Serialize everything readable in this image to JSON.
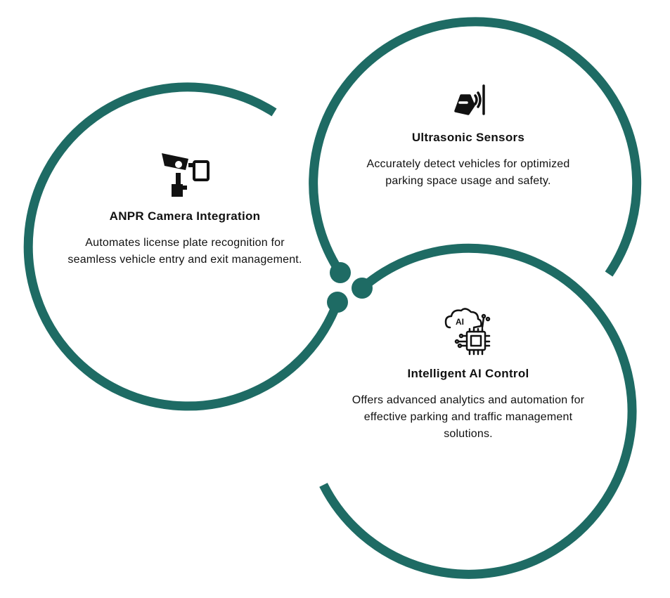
{
  "theme": {
    "ring_color": "#1e6b64",
    "icon_color": "#111111",
    "text_color": "#111111"
  },
  "nodes": [
    {
      "title": "ANPR Camera Integration",
      "description": "Automates license plate recognition for seamless vehicle entry and exit management.",
      "icon": "security-camera-icon"
    },
    {
      "title": "Ultrasonic Sensors",
      "description": "Accurately detect vehicles for optimized parking space usage and safety.",
      "icon": "car-sensor-icon"
    },
    {
      "title": "Intelligent AI Control",
      "description": "Offers advanced analytics and automation for effective parking and traffic management solutions.",
      "icon": "ai-chip-cloud-icon"
    }
  ]
}
